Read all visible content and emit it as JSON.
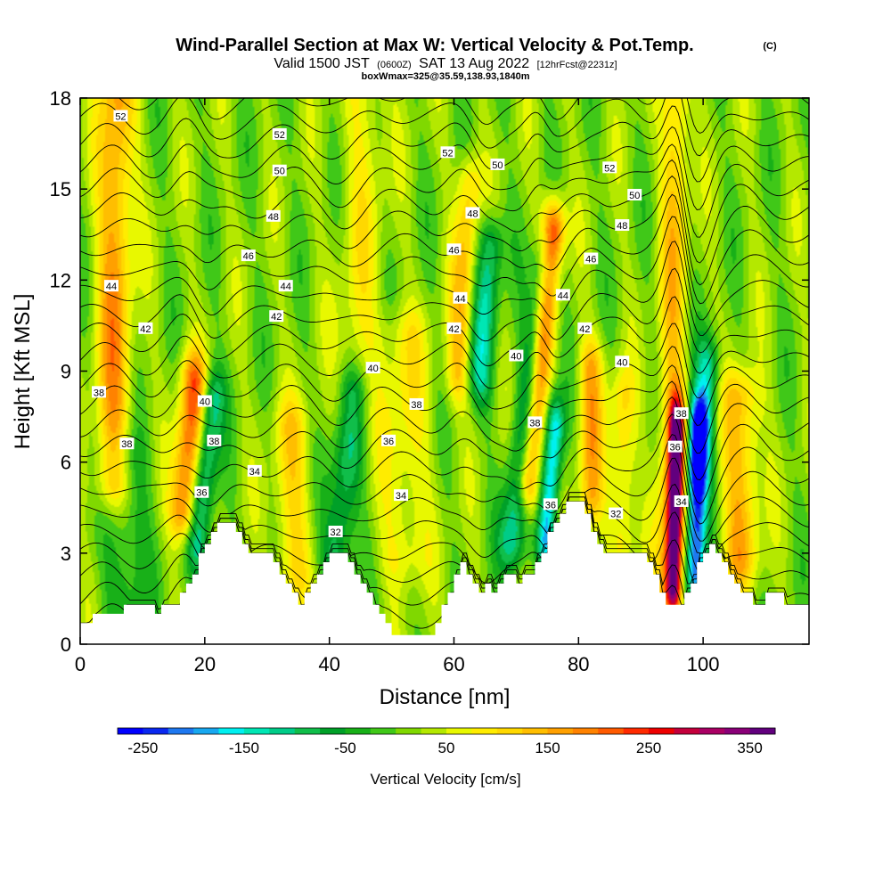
{
  "title": "Wind-Parallel Section at Max W: Vertical Velocity & Pot.Temp.",
  "copyright_mark": "(C)",
  "valid_prefix": "Valid 1500 JST",
  "valid_utc": "(0600Z)",
  "valid_date": "SAT 13 Aug 2022",
  "forecast_info": "[12hrFcst@2231z]",
  "boxinfo": "boxWmax=325@35.59,138.93,1840m",
  "chart_data": {
    "type": "heatmap",
    "xlabel": "Distance [nm]",
    "ylabel": "Height [Kft MSL]",
    "xlim": [
      0,
      117
    ],
    "ylim": [
      0,
      18
    ],
    "x_ticks": [
      {
        "value": 0,
        "label": "0"
      },
      {
        "value": 20,
        "label": "20"
      },
      {
        "value": 40,
        "label": "40"
      },
      {
        "value": 60,
        "label": "60"
      },
      {
        "value": 80,
        "label": "80"
      },
      {
        "value": 100,
        "label": "100"
      }
    ],
    "y_ticks": [
      {
        "value": 0,
        "label": "0"
      },
      {
        "value": 3,
        "label": "3"
      },
      {
        "value": 6,
        "label": "6"
      },
      {
        "value": 9,
        "label": "9"
      },
      {
        "value": 12,
        "label": "12"
      },
      {
        "value": 15,
        "label": "15"
      },
      {
        "value": 18,
        "label": "18"
      }
    ],
    "terrain": [
      [
        0,
        0.7
      ],
      [
        2,
        0.7
      ],
      [
        2,
        1.0
      ],
      [
        7,
        1.0
      ],
      [
        7,
        1.3
      ],
      [
        12,
        1.3
      ],
      [
        12,
        1.0
      ],
      [
        13,
        1.0
      ],
      [
        13,
        1.3
      ],
      [
        16,
        1.3
      ],
      [
        16,
        1.7
      ],
      [
        17,
        1.7
      ],
      [
        17,
        2.0
      ],
      [
        18,
        2.0
      ],
      [
        18,
        2.3
      ],
      [
        19,
        2.3
      ],
      [
        19,
        3.0
      ],
      [
        20,
        3.0
      ],
      [
        20,
        3.3
      ],
      [
        21,
        3.3
      ],
      [
        21,
        3.7
      ],
      [
        22,
        3.7
      ],
      [
        22,
        4.0
      ],
      [
        25,
        4.0
      ],
      [
        25,
        3.7
      ],
      [
        26,
        3.7
      ],
      [
        26,
        3.3
      ],
      [
        27,
        3.3
      ],
      [
        27,
        3.0
      ],
      [
        31,
        3.0
      ],
      [
        31,
        2.7
      ],
      [
        32,
        2.7
      ],
      [
        32,
        2.3
      ],
      [
        33,
        2.3
      ],
      [
        33,
        2.0
      ],
      [
        34,
        2.0
      ],
      [
        34,
        1.7
      ],
      [
        35,
        1.7
      ],
      [
        35,
        1.3
      ],
      [
        36,
        1.3
      ],
      [
        36,
        1.7
      ],
      [
        37,
        1.7
      ],
      [
        37,
        2.0
      ],
      [
        38,
        2.0
      ],
      [
        38,
        2.3
      ],
      [
        39,
        2.3
      ],
      [
        39,
        2.7
      ],
      [
        40,
        2.7
      ],
      [
        40,
        3.0
      ],
      [
        43,
        3.0
      ],
      [
        43,
        2.7
      ],
      [
        44,
        2.7
      ],
      [
        44,
        2.3
      ],
      [
        45,
        2.3
      ],
      [
        45,
        2.0
      ],
      [
        46,
        2.0
      ],
      [
        46,
        1.7
      ],
      [
        47,
        1.7
      ],
      [
        47,
        1.3
      ],
      [
        48,
        1.3
      ],
      [
        48,
        1.0
      ],
      [
        49,
        1.0
      ],
      [
        49,
        0.7
      ],
      [
        50,
        0.7
      ],
      [
        50,
        0.3
      ],
      [
        57,
        0.3
      ],
      [
        57,
        0.7
      ],
      [
        58,
        0.7
      ],
      [
        58,
        1.3
      ],
      [
        59,
        1.3
      ],
      [
        59,
        1.7
      ],
      [
        60,
        1.7
      ],
      [
        60,
        2.3
      ],
      [
        61,
        2.3
      ],
      [
        61,
        2.7
      ],
      [
        62,
        2.7
      ],
      [
        62,
        2.3
      ],
      [
        63,
        2.3
      ],
      [
        63,
        2.0
      ],
      [
        64,
        2.0
      ],
      [
        64,
        1.7
      ],
      [
        65,
        1.7
      ],
      [
        65,
        2.0
      ],
      [
        66,
        2.0
      ],
      [
        66,
        1.7
      ],
      [
        67,
        1.7
      ],
      [
        67,
        2.0
      ],
      [
        68,
        2.0
      ],
      [
        68,
        2.3
      ],
      [
        70,
        2.3
      ],
      [
        70,
        2.0
      ],
      [
        71,
        2.0
      ],
      [
        71,
        2.3
      ],
      [
        73,
        2.3
      ],
      [
        73,
        2.7
      ],
      [
        74,
        2.7
      ],
      [
        74,
        3.0
      ],
      [
        75,
        3.0
      ],
      [
        75,
        3.7
      ],
      [
        76,
        3.7
      ],
      [
        76,
        4.0
      ],
      [
        77,
        4.0
      ],
      [
        77,
        4.3
      ],
      [
        78,
        4.3
      ],
      [
        78,
        4.7
      ],
      [
        81,
        4.7
      ],
      [
        81,
        4.3
      ],
      [
        82,
        4.3
      ],
      [
        82,
        3.7
      ],
      [
        83,
        3.7
      ],
      [
        83,
        3.3
      ],
      [
        84,
        3.3
      ],
      [
        84,
        3.0
      ],
      [
        91,
        3.0
      ],
      [
        91,
        2.7
      ],
      [
        92,
        2.7
      ],
      [
        92,
        2.3
      ],
      [
        93,
        2.3
      ],
      [
        93,
        1.7
      ],
      [
        94,
        1.7
      ],
      [
        94,
        1.3
      ],
      [
        97,
        1.3
      ],
      [
        97,
        1.7
      ],
      [
        98,
        1.7
      ],
      [
        98,
        2.0
      ],
      [
        99,
        2.0
      ],
      [
        99,
        2.7
      ],
      [
        100,
        2.7
      ],
      [
        100,
        3.0
      ],
      [
        101,
        3.0
      ],
      [
        101,
        3.3
      ],
      [
        102,
        3.3
      ],
      [
        102,
        3.0
      ],
      [
        103,
        3.0
      ],
      [
        103,
        2.7
      ],
      [
        104,
        2.7
      ],
      [
        104,
        2.3
      ],
      [
        105,
        2.3
      ],
      [
        105,
        2.0
      ],
      [
        106,
        2.0
      ],
      [
        106,
        1.7
      ],
      [
        108,
        1.7
      ],
      [
        108,
        1.3
      ],
      [
        110,
        1.3
      ],
      [
        110,
        1.7
      ],
      [
        113,
        1.7
      ],
      [
        113,
        1.3
      ],
      [
        117,
        1.3
      ]
    ],
    "vertical_velocity_features": [
      {
        "x": 5.5,
        "x_half_width": 2.8,
        "y_bottom": 5.5,
        "y_top": 18,
        "w": 150,
        "tilt": 0.05
      },
      {
        "x": 7.5,
        "x_half_width": 3.5,
        "y_bottom": 1.5,
        "y_top": 6,
        "w": -70,
        "tilt": 0
      },
      {
        "x": 17.5,
        "x_half_width": 2.2,
        "y_bottom": 4.5,
        "y_top": 8.5,
        "w": 200,
        "tilt": 0.4
      },
      {
        "x": 20,
        "x_half_width": 2.0,
        "y_bottom": 3.5,
        "y_top": 8,
        "w": -140,
        "tilt": 0.5
      },
      {
        "x": 34,
        "x_half_width": 3.0,
        "y_bottom": 2.5,
        "y_top": 7,
        "w": 90,
        "tilt": 0
      },
      {
        "x": 42.5,
        "x_half_width": 2.5,
        "y_bottom": 3,
        "y_top": 8,
        "w": -120,
        "tilt": 0.5
      },
      {
        "x": 45,
        "x_half_width": 3.5,
        "y_bottom": 8,
        "y_top": 18,
        "w": 60,
        "tilt": 0.2
      },
      {
        "x": 52,
        "x_half_width": 4.0,
        "y_bottom": 3,
        "y_top": 10,
        "w": 70,
        "tilt": 0
      },
      {
        "x": 61.5,
        "x_half_width": 2.0,
        "y_bottom": 9,
        "y_top": 15,
        "w": 110,
        "tilt": 0.3
      },
      {
        "x": 65,
        "x_half_width": 2.0,
        "y_bottom": 9,
        "y_top": 13,
        "w": -130,
        "tilt": 0.4
      },
      {
        "x": 72,
        "x_half_width": 2.2,
        "y_bottom": 3.5,
        "y_top": 12,
        "w": -150,
        "tilt": 0.6
      },
      {
        "x": 74,
        "x_half_width": 1.8,
        "y_bottom": 5.5,
        "y_top": 13.5,
        "w": 240,
        "tilt": 0.5
      },
      {
        "x": 75.5,
        "x_half_width": 1.5,
        "y_bottom": 3.5,
        "y_top": 7,
        "w": -200,
        "tilt": 0.4
      },
      {
        "x": 82,
        "x_half_width": 2.0,
        "y_bottom": 5,
        "y_top": 9,
        "w": 130,
        "tilt": 0
      },
      {
        "x": 87,
        "x_half_width": 2.0,
        "y_bottom": 3.5,
        "y_top": 8,
        "w": 90,
        "tilt": 0
      },
      {
        "x": 95.5,
        "x_half_width": 1.3,
        "y_bottom": 2,
        "y_top": 7,
        "w": 330,
        "tilt": 0.1
      },
      {
        "x": 95,
        "x_half_width": 2.2,
        "y_bottom": 2,
        "y_top": 18,
        "w": 110,
        "tilt": 0.1
      },
      {
        "x": 99,
        "x_half_width": 1.6,
        "y_bottom": 2.5,
        "y_top": 7,
        "w": -250,
        "tilt": 0.1
      },
      {
        "x": 100,
        "x_half_width": 2.0,
        "y_bottom": 6,
        "y_top": 9,
        "w": -140,
        "tilt": 0.5
      },
      {
        "x": 106,
        "x_half_width": 3.0,
        "y_bottom": 3,
        "y_top": 8,
        "w": 130,
        "tilt": 0
      }
    ],
    "theta_contour_levels": [
      30,
      31,
      32,
      33,
      34,
      35,
      36,
      37,
      38,
      39,
      40,
      41,
      42,
      43,
      44,
      45,
      46,
      47,
      48,
      49,
      50,
      51,
      52,
      53,
      54
    ],
    "theta_contour_labels": [
      {
        "x": 6.5,
        "y": 17.4,
        "text": "52"
      },
      {
        "x": 32,
        "y": 16.8,
        "text": "52"
      },
      {
        "x": 32,
        "y": 15.6,
        "text": "50"
      },
      {
        "x": 31,
        "y": 14.1,
        "text": "48"
      },
      {
        "x": 27,
        "y": 12.8,
        "text": "46"
      },
      {
        "x": 5,
        "y": 11.8,
        "text": "44"
      },
      {
        "x": 33,
        "y": 11.8,
        "text": "44"
      },
      {
        "x": 10.5,
        "y": 10.4,
        "text": "42"
      },
      {
        "x": 31.5,
        "y": 10.8,
        "text": "42"
      },
      {
        "x": 3,
        "y": 8.3,
        "text": "38"
      },
      {
        "x": 7.5,
        "y": 6.6,
        "text": "38"
      },
      {
        "x": 20,
        "y": 8.0,
        "text": "40"
      },
      {
        "x": 21.5,
        "y": 6.7,
        "text": "38"
      },
      {
        "x": 28,
        "y": 5.7,
        "text": "34"
      },
      {
        "x": 19.5,
        "y": 5.0,
        "text": "36"
      },
      {
        "x": 47,
        "y": 9.1,
        "text": "40"
      },
      {
        "x": 54,
        "y": 7.9,
        "text": "38"
      },
      {
        "x": 49.5,
        "y": 6.7,
        "text": "36"
      },
      {
        "x": 51.5,
        "y": 4.9,
        "text": "34"
      },
      {
        "x": 41,
        "y": 3.7,
        "text": "32"
      },
      {
        "x": 59,
        "y": 16.2,
        "text": "52"
      },
      {
        "x": 67,
        "y": 15.8,
        "text": "50"
      },
      {
        "x": 63,
        "y": 14.2,
        "text": "48"
      },
      {
        "x": 60,
        "y": 13.0,
        "text": "46"
      },
      {
        "x": 61,
        "y": 11.4,
        "text": "44"
      },
      {
        "x": 60,
        "y": 10.4,
        "text": "42"
      },
      {
        "x": 70,
        "y": 9.5,
        "text": "40"
      },
      {
        "x": 73,
        "y": 7.3,
        "text": "38"
      },
      {
        "x": 75.5,
        "y": 4.6,
        "text": "36"
      },
      {
        "x": 77.5,
        "y": 11.5,
        "text": "44"
      },
      {
        "x": 81,
        "y": 10.4,
        "text": "42"
      },
      {
        "x": 82,
        "y": 12.7,
        "text": "46"
      },
      {
        "x": 87,
        "y": 13.8,
        "text": "48"
      },
      {
        "x": 89,
        "y": 14.8,
        "text": "50"
      },
      {
        "x": 85,
        "y": 15.7,
        "text": "52"
      },
      {
        "x": 87,
        "y": 9.3,
        "text": "40"
      },
      {
        "x": 86,
        "y": 4.3,
        "text": "32"
      },
      {
        "x": 96.5,
        "y": 7.6,
        "text": "38"
      },
      {
        "x": 95.5,
        "y": 6.5,
        "text": "36"
      },
      {
        "x": 96.5,
        "y": 4.7,
        "text": "34"
      }
    ],
    "colorbar": {
      "label": "Vertical Velocity [cm/s]",
      "min": -275,
      "max": 375,
      "step": 25,
      "colors": [
        "#0000ff",
        "#0a28f0",
        "#1e78f0",
        "#18a8f0",
        "#00f0f0",
        "#00e6b4",
        "#00cc88",
        "#10be4a",
        "#00a028",
        "#18b018",
        "#40c818",
        "#80d800",
        "#b4e800",
        "#e8f800",
        "#ffec00",
        "#ffd800",
        "#ffbe00",
        "#ffa000",
        "#ff8200",
        "#ff5a00",
        "#ff2a00",
        "#ee0000",
        "#c4003c",
        "#aa0064",
        "#8a0078",
        "#62007e"
      ],
      "tick_labels": [
        {
          "value": -250,
          "label": "-250"
        },
        {
          "value": -150,
          "label": "-150"
        },
        {
          "value": -50,
          "label": "-50"
        },
        {
          "value": 50,
          "label": "50"
        },
        {
          "value": 150,
          "label": "150"
        },
        {
          "value": 250,
          "label": "250"
        },
        {
          "value": 350,
          "label": "350"
        }
      ]
    }
  }
}
